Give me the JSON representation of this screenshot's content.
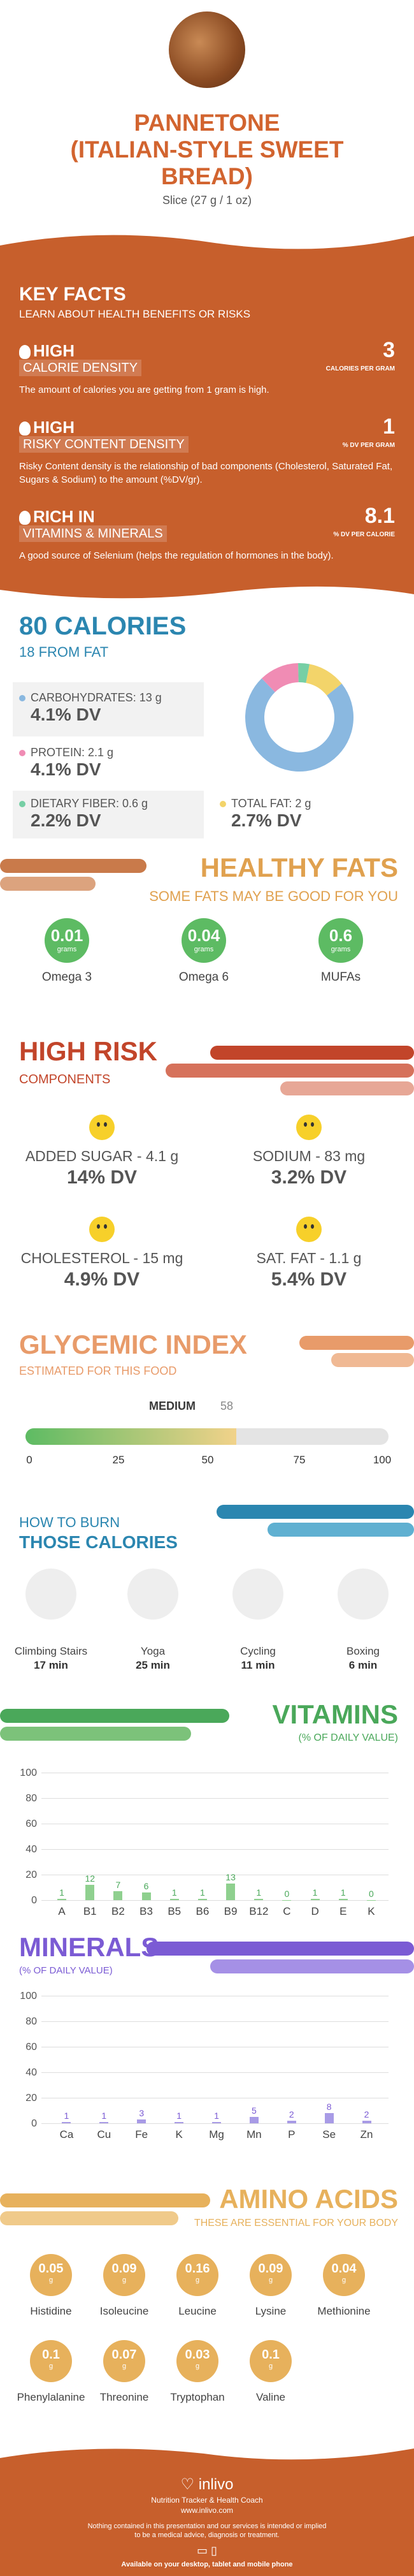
{
  "header": {
    "title_line1": "PANNETONE",
    "title_line2": "(ITALIAN-STYLE SWEET",
    "title_line3": "BREAD)",
    "serving": "Slice (27 g / 1 oz)"
  },
  "key_facts": {
    "title": "KEY FACTS",
    "subtitle": "LEARN ABOUT HEALTH BENEFITS OR RISKS",
    "facts": [
      {
        "level": "HIGH",
        "label": "CALORIE DENSITY",
        "value": "3",
        "unit": "CALORIES PER GRAM",
        "desc": "The amount of calories you are getting from 1 gram is high."
      },
      {
        "level": "HIGH",
        "label": "RISKY CONTENT DENSITY",
        "value": "1",
        "unit": "% DV PER GRAM",
        "desc": "Risky Content density is the relationship of bad components (Cholesterol, Saturated Fat, Sugars & Sodium) to the amount (%DV/gr)."
      },
      {
        "level": "RICH IN",
        "label": "VITAMINS & MINERALS",
        "value": "8.1",
        "unit": "% DV PER CALORIE",
        "desc": "A good source of Selenium (helps the regulation of hormones in the body)."
      }
    ]
  },
  "calories": {
    "title": "80 CALORIES",
    "from_fat": "18 FROM FAT",
    "nutrients": [
      {
        "label": "CARBOHYDRATES: 13 g",
        "dv": "4.1% DV",
        "color": "#8ab8e0"
      },
      {
        "label": "PROTEIN: 2.1 g",
        "dv": "4.1% DV",
        "color": "#f08cb4"
      },
      {
        "label": "DIETARY FIBER: 0.6 g",
        "dv": "2.2% DV",
        "color": "#76cfa5"
      },
      {
        "label": "TOTAL FAT: 2 g",
        "dv": "2.7% DV",
        "color": "#f3d46a"
      }
    ]
  },
  "healthy_fats": {
    "title": "HEALTHY FATS",
    "subtitle": "SOME FATS MAY BE GOOD FOR YOU",
    "items": [
      {
        "value": "0.01",
        "unit": "grams",
        "name": "Omega 3"
      },
      {
        "value": "0.04",
        "unit": "grams",
        "name": "Omega 6"
      },
      {
        "value": "0.6",
        "unit": "grams",
        "name": "MUFAs"
      }
    ]
  },
  "high_risk": {
    "title": "HIGH RISK",
    "subtitle": "COMPONENTS",
    "items": [
      {
        "label": "ADDED SUGAR - 4.1 g",
        "dv": "14% DV"
      },
      {
        "label": "SODIUM - 83 mg",
        "dv": "3.2% DV"
      },
      {
        "label": "CHOLESTEROL - 15 mg",
        "dv": "4.9% DV"
      },
      {
        "label": "SAT. FAT - 1.1 g",
        "dv": "5.4% DV"
      }
    ]
  },
  "glycemic": {
    "title": "GLYCEMIC INDEX",
    "subtitle": "ESTIMATED FOR THIS FOOD",
    "level": "MEDIUM",
    "value": "58",
    "fraction": 0.58,
    "ticks": [
      "0",
      "25",
      "50",
      "75",
      "100"
    ]
  },
  "burn": {
    "title1": "HOW TO BURN",
    "title2": "THOSE CALORIES",
    "items": [
      {
        "name": "Climbing Stairs",
        "time": "17 min"
      },
      {
        "name": "Yoga",
        "time": "25 min"
      },
      {
        "name": "Cycling",
        "time": "11 min"
      },
      {
        "name": "Boxing",
        "time": "6 min"
      }
    ]
  },
  "vitamins": {
    "title": "VITAMINS",
    "subtitle": "(% OF DAILY VALUE)",
    "ticks": [
      "100",
      "80",
      "60",
      "40",
      "20",
      "0"
    ]
  },
  "minerals": {
    "title": "MINERALS",
    "subtitle": "(% OF DAILY VALUE)",
    "ticks": [
      "100",
      "80",
      "60",
      "40",
      "20",
      "0"
    ]
  },
  "chart_data": [
    {
      "type": "bar",
      "title": "VITAMINS",
      "ylabel": "(% OF DAILY VALUE)",
      "categories": [
        "A",
        "B1",
        "B2",
        "B3",
        "B5",
        "B6",
        "B9",
        "B12",
        "C",
        "D",
        "E",
        "K"
      ],
      "values": [
        1,
        12,
        7,
        6,
        1,
        1,
        13,
        1,
        0,
        1,
        1,
        0
      ],
      "ylim": [
        0,
        100
      ],
      "color": "#8fd08f"
    },
    {
      "type": "bar",
      "title": "MINERALS",
      "ylabel": "(% OF DAILY VALUE)",
      "categories": [
        "Ca",
        "Cu",
        "Fe",
        "K",
        "Mg",
        "Mn",
        "P",
        "Se",
        "Zn"
      ],
      "values": [
        1,
        1,
        3,
        1,
        1,
        5,
        2,
        8,
        2
      ],
      "ylim": [
        0,
        100
      ],
      "color": "#a89be6"
    },
    {
      "type": "pie",
      "title": "80 CALORIES",
      "categories": [
        "CARBOHYDRATES",
        "PROTEIN",
        "DIETARY FIBER",
        "TOTAL FAT"
      ],
      "values": [
        13,
        2.1,
        0.6,
        2
      ]
    }
  ],
  "amino": {
    "title": "AMINO ACIDS",
    "subtitle": "THESE ARE ESSENTIAL FOR YOUR BODY",
    "items": [
      {
        "value": "0.05",
        "unit": "g",
        "name": "Histidine"
      },
      {
        "value": "0.09",
        "unit": "g",
        "name": "Isoleucine"
      },
      {
        "value": "0.16",
        "unit": "g",
        "name": "Leucine"
      },
      {
        "value": "0.09",
        "unit": "g",
        "name": "Lysine"
      },
      {
        "value": "0.04",
        "unit": "g",
        "name": "Methionine"
      },
      {
        "value": "0.1",
        "unit": "g",
        "name": "Phenylalanine"
      },
      {
        "value": "0.07",
        "unit": "g",
        "name": "Threonine"
      },
      {
        "value": "0.03",
        "unit": "g",
        "name": "Tryptophan"
      },
      {
        "value": "0.1",
        "unit": "g",
        "name": "Valine"
      }
    ]
  },
  "footer": {
    "brand": "inlivo",
    "tagline": "Nutrition Tracker & Health Coach",
    "url": "www.inlivo.com",
    "disclaimer1": "Nothing contained in this presentation and our services is intended or implied",
    "disclaimer2": "to be a medical advice, diagnosis or treatment.",
    "available": "Available on your desktop, tablet and mobile phone"
  }
}
